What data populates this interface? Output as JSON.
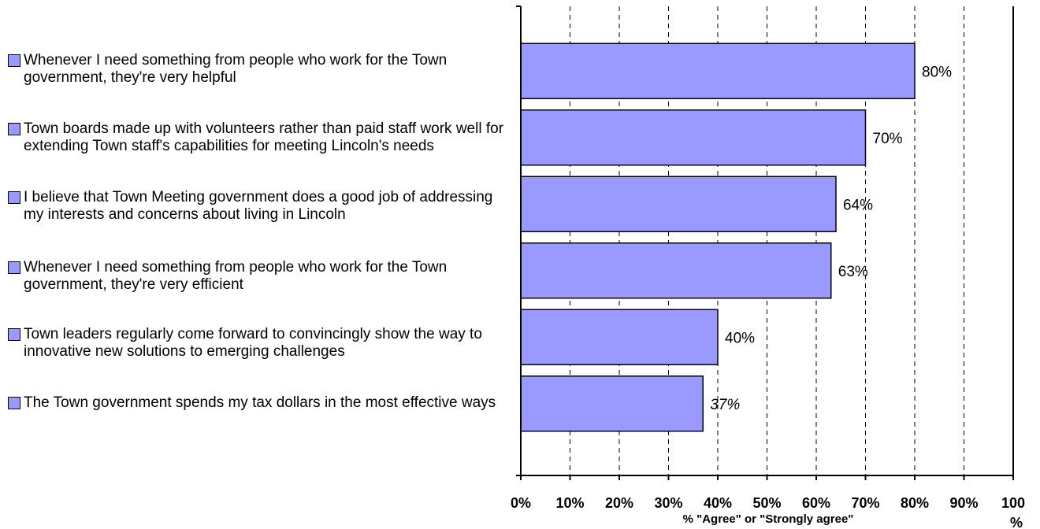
{
  "chart_data": {
    "type": "bar",
    "orientation": "horizontal",
    "categories": [
      "Whenever I need something from people who work for the Town government, they're very helpful",
      "Town boards made up with volunteers rather than paid staff work well for extending Town staff's capabilities for meeting Lincoln's needs",
      "I believe that Town Meeting government does a good job of addressing my interests and concerns about living in Lincoln",
      "Whenever I need something from people who work for the Town government, they're very efficient",
      "Town leaders regularly come forward to convincingly show the way to innovative new solutions to emerging challenges",
      "The Town government spends my tax dollars in the most effective ways"
    ],
    "values": [
      80,
      70,
      64,
      63,
      40,
      37
    ],
    "data_labels": [
      "80%",
      "70%",
      "64%",
      "63%",
      "40%",
      "37%"
    ],
    "xlabel": "% \"Agree\" or \"Strongly agree\"",
    "ylabel": "",
    "xlim": [
      0,
      100
    ],
    "x_ticks": [
      "0%",
      "10%",
      "20%",
      "30%",
      "40%",
      "50%",
      "60%",
      "70%",
      "80%",
      "90%",
      "100%"
    ],
    "grid": "vertical dashed",
    "legend": "left",
    "bar_color": "#9999ff"
  }
}
